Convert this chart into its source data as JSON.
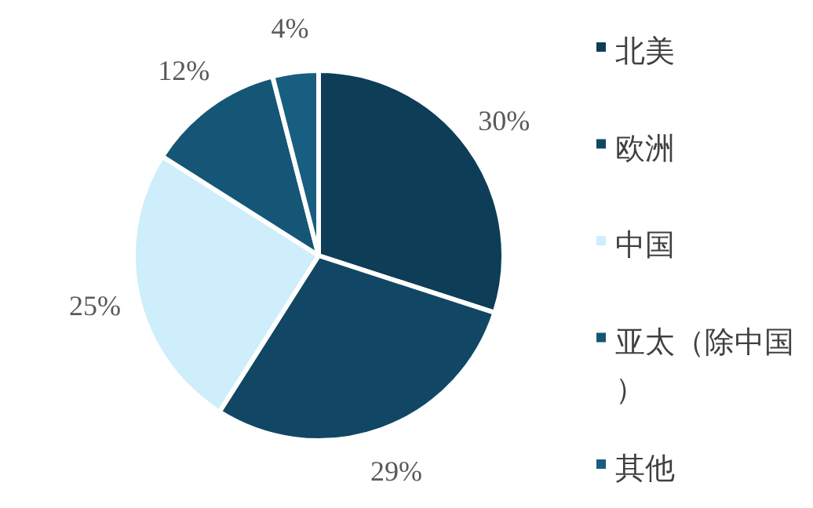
{
  "chart_data": {
    "type": "pie",
    "categories": [
      "北美",
      "欧洲",
      "中国",
      "亚太（除中国）",
      "其他"
    ],
    "values": [
      30,
      29,
      25,
      12,
      4
    ],
    "colors": [
      "#0e3d57",
      "#114764",
      "#cdeefa",
      "#155676",
      "#185e80"
    ],
    "value_labels": [
      "30%",
      "29%",
      "25%",
      "12%",
      "4%"
    ],
    "legend": "right"
  }
}
